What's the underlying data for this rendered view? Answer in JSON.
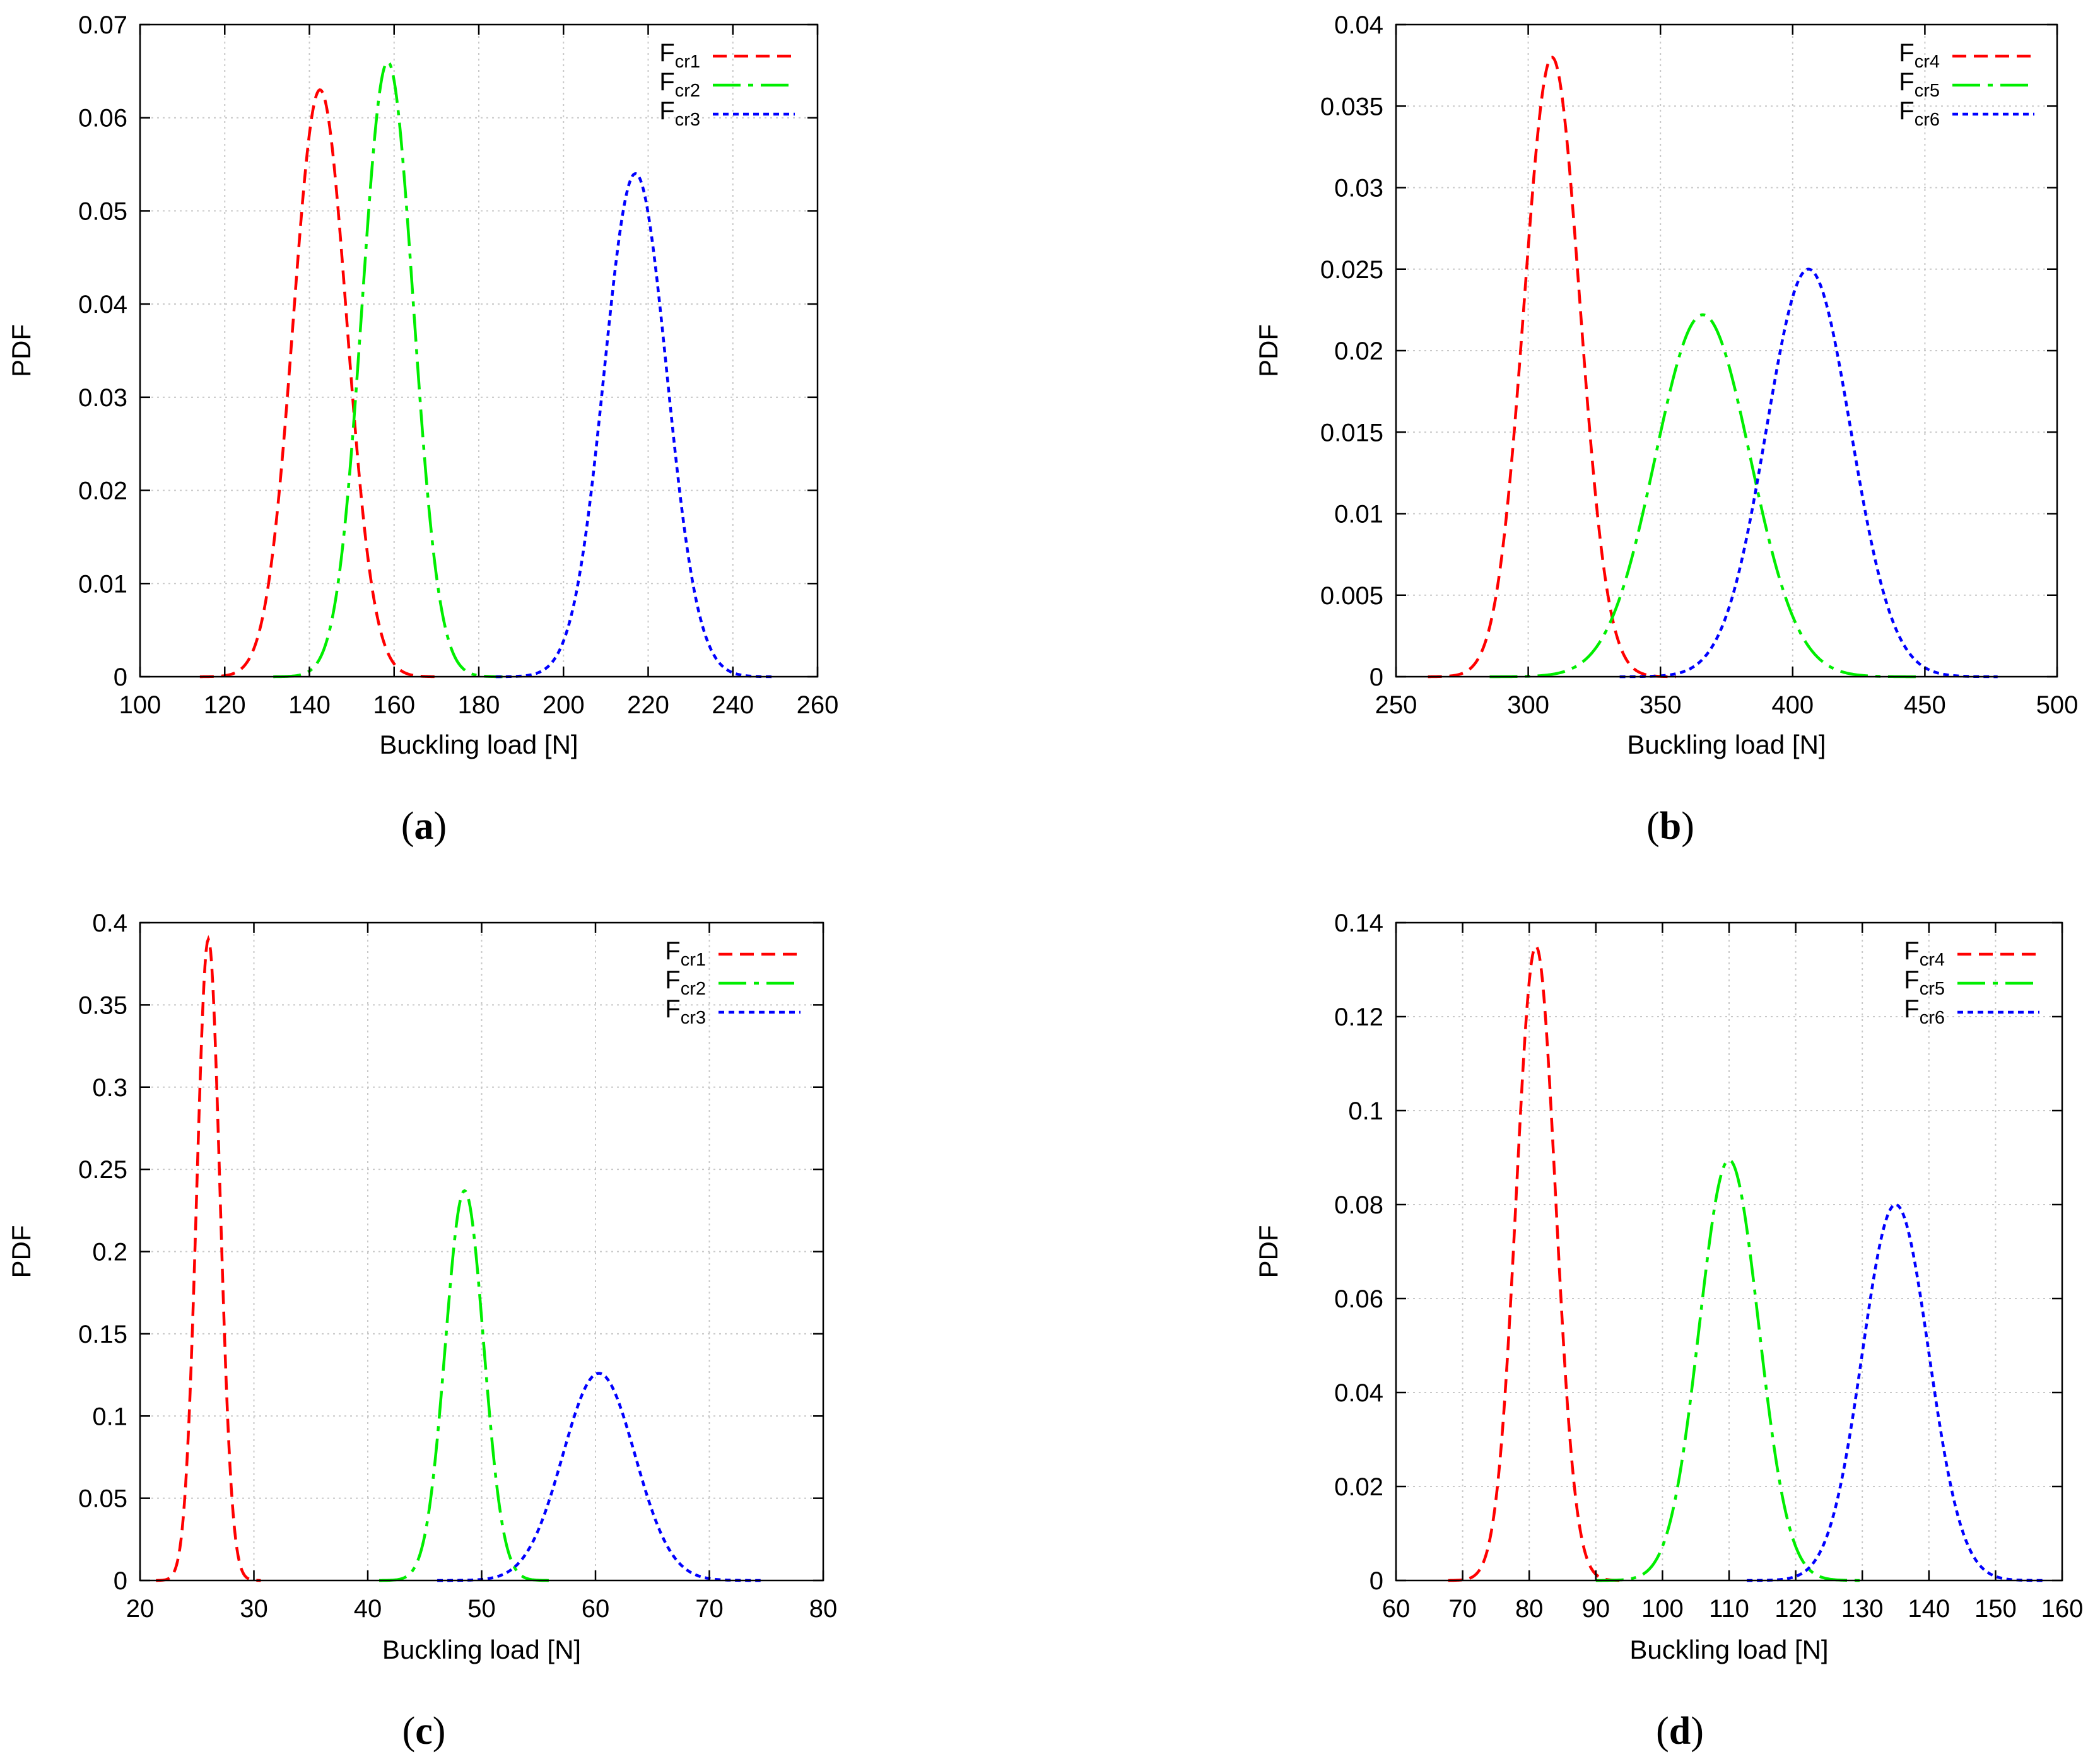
{
  "chart_data": [
    {
      "id": "a",
      "type": "line",
      "caption": "a",
      "xlabel": "Buckling load [N]",
      "ylabel": "PDF",
      "xlim": [
        100,
        260
      ],
      "ylim": [
        0,
        0.07
      ],
      "xticks": [
        100,
        120,
        140,
        160,
        180,
        200,
        220,
        240,
        260
      ],
      "xtick_labels": [
        "100",
        "120",
        "140",
        "160",
        "180",
        "200",
        "220",
        "240",
        "260"
      ],
      "yticks": [
        0,
        0.01,
        0.02,
        0.03,
        0.04,
        0.05,
        0.06,
        0.07
      ],
      "ytick_labels": [
        "0",
        "0.01",
        "0.02",
        "0.03",
        "0.04",
        "0.05",
        "0.06",
        "0.07"
      ],
      "grid": true,
      "legend_position": "top-right",
      "series": [
        {
          "name": "Fcr1",
          "label_main": "F",
          "label_sub": "cr1",
          "color": "#ff0000",
          "dash": "dashed",
          "mean": 142.5,
          "peak": 0.063
        },
        {
          "name": "Fcr2",
          "label_main": "F",
          "label_sub": "cr2",
          "color": "#00ee00",
          "dash": "dash-dot",
          "mean": 158.5,
          "peak": 0.066
        },
        {
          "name": "Fcr3",
          "label_main": "F",
          "label_sub": "cr3",
          "color": "#0000ff",
          "dash": "dotted",
          "mean": 217.0,
          "peak": 0.054
        }
      ]
    },
    {
      "id": "b",
      "type": "line",
      "caption": "b",
      "xlabel": "Buckling load [N]",
      "ylabel": "PDF",
      "xlim": [
        250,
        500
      ],
      "ylim": [
        0,
        0.04
      ],
      "xticks": [
        250,
        300,
        350,
        400,
        450,
        500
      ],
      "xtick_labels": [
        "250",
        "300",
        "350",
        "400",
        "450",
        "500"
      ],
      "yticks": [
        0,
        0.005,
        0.01,
        0.015,
        0.02,
        0.025,
        0.03,
        0.035,
        0.04
      ],
      "ytick_labels": [
        "0",
        "0.005",
        "0.01",
        "0.015",
        "0.02",
        "0.025",
        "0.03",
        "0.035",
        "0.04"
      ],
      "grid": true,
      "legend_position": "top-right",
      "series": [
        {
          "name": "Fcr4",
          "label_main": "F",
          "label_sub": "cr4",
          "color": "#ff0000",
          "dash": "dashed",
          "mean": 309.0,
          "peak": 0.038
        },
        {
          "name": "Fcr5",
          "label_main": "F",
          "label_sub": "cr5",
          "color": "#00ee00",
          "dash": "dash-dot",
          "mean": 366.0,
          "peak": 0.0222
        },
        {
          "name": "Fcr6",
          "label_main": "F",
          "label_sub": "cr6",
          "color": "#0000ff",
          "dash": "dotted",
          "mean": 406.0,
          "peak": 0.025
        }
      ]
    },
    {
      "id": "c",
      "type": "line",
      "caption": "c",
      "xlabel": "Buckling load [N]",
      "ylabel": "PDF",
      "xlim": [
        20,
        80
      ],
      "ylim": [
        0,
        0.4
      ],
      "xticks": [
        20,
        30,
        40,
        50,
        60,
        70,
        80
      ],
      "xtick_labels": [
        "20",
        "30",
        "40",
        "50",
        "60",
        "70",
        "80"
      ],
      "yticks": [
        0,
        0.05,
        0.1,
        0.15,
        0.2,
        0.25,
        0.3,
        0.35,
        0.4
      ],
      "ytick_labels": [
        "0",
        "0.05",
        "0.1",
        "0.15",
        "0.2",
        "0.25",
        "0.3",
        "0.35",
        "0.4"
      ],
      "grid": true,
      "legend_position": "top-right",
      "series": [
        {
          "name": "Fcr1",
          "label_main": "F",
          "label_sub": "cr1",
          "color": "#ff0000",
          "dash": "dashed",
          "mean": 26.0,
          "peak": 0.39
        },
        {
          "name": "Fcr2",
          "label_main": "F",
          "label_sub": "cr2",
          "color": "#00ee00",
          "dash": "dash-dot",
          "mean": 48.5,
          "peak": 0.237
        },
        {
          "name": "Fcr3",
          "label_main": "F",
          "label_sub": "cr3",
          "color": "#0000ff",
          "dash": "dotted",
          "mean": 60.3,
          "peak": 0.126
        }
      ]
    },
    {
      "id": "d",
      "type": "line",
      "caption": "d",
      "xlabel": "Buckling load [N]",
      "ylabel": "PDF",
      "xlim": [
        60,
        160
      ],
      "ylim": [
        0,
        0.14
      ],
      "xticks": [
        60,
        70,
        80,
        90,
        100,
        110,
        120,
        130,
        140,
        150,
        160
      ],
      "xtick_labels": [
        "60",
        "70",
        "80",
        "90",
        "100",
        "110",
        "120",
        "130",
        "140",
        "150",
        "160"
      ],
      "yticks": [
        0,
        0.02,
        0.04,
        0.06,
        0.08,
        0.1,
        0.12,
        0.14
      ],
      "ytick_labels": [
        "0",
        "0.02",
        "0.04",
        "0.06",
        "0.08",
        "0.1",
        "0.12",
        "0.14"
      ],
      "grid": true,
      "legend_position": "top-right",
      "series": [
        {
          "name": "Fcr4",
          "label_main": "F",
          "label_sub": "cr4",
          "color": "#ff0000",
          "dash": "dashed",
          "mean": 81.0,
          "peak": 0.135
        },
        {
          "name": "Fcr5",
          "label_main": "F",
          "label_sub": "cr5",
          "color": "#00ee00",
          "dash": "dash-dot",
          "mean": 110.0,
          "peak": 0.0895
        },
        {
          "name": "Fcr6",
          "label_main": "F",
          "label_sub": "cr6",
          "color": "#0000ff",
          "dash": "dotted",
          "mean": 135.0,
          "peak": 0.08
        }
      ]
    }
  ]
}
